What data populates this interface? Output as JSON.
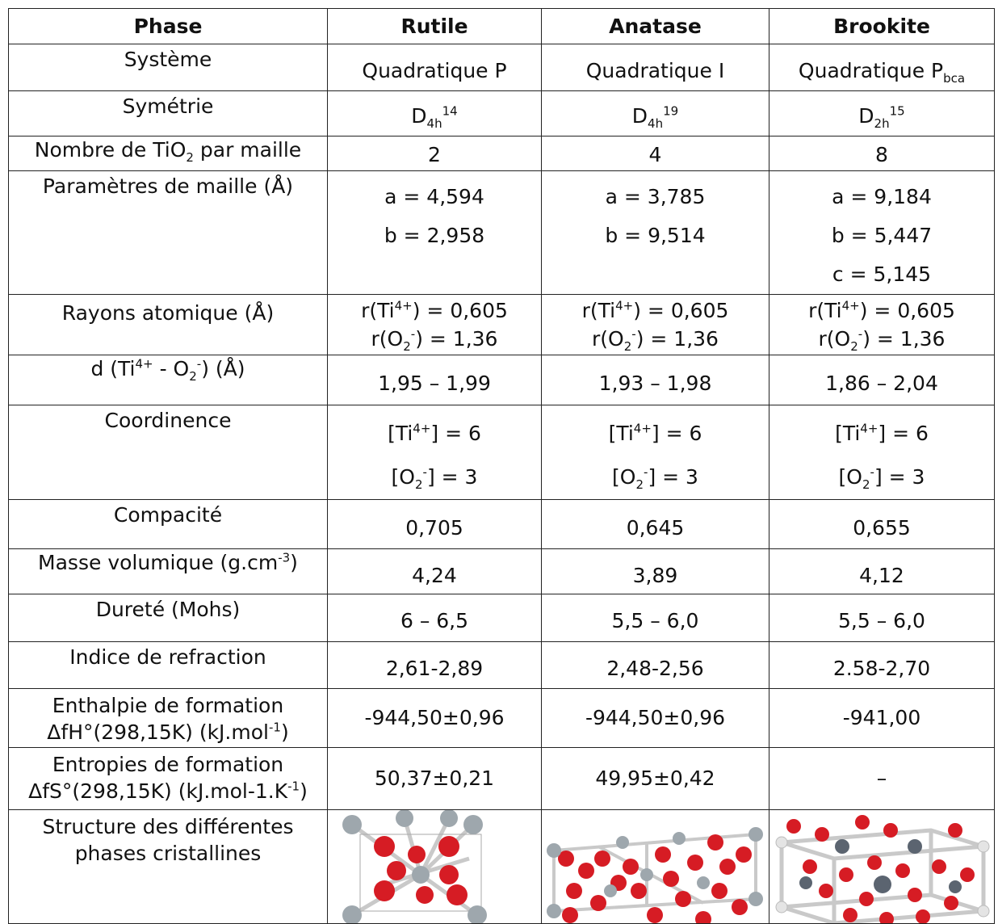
{
  "headers": [
    "Phase",
    "Rutile",
    "Anatase",
    "Brookite"
  ],
  "rows": {
    "systeme": {
      "label": "Système",
      "rutile": "Quadratique P",
      "anatase": "Quadratique I",
      "brookite": "Quadratique P",
      "brookite_sub": "bca"
    },
    "symetrie": {
      "label": "Symétrie",
      "rutile": {
        "base": "D",
        "sub": "4h",
        "sup": "14"
      },
      "anatase": {
        "base": "D",
        "sub": "4h",
        "sup": "19"
      },
      "brookite": {
        "base": "D",
        "sub": "2h",
        "sup": "15"
      }
    },
    "nombre": {
      "label_pre": "Nombre de TiO",
      "label_sub": "2",
      "label_post": " par maille",
      "rutile": "2",
      "anatase": "4",
      "brookite": "8"
    },
    "parametres": {
      "label": "Paramètres de maille (Å)",
      "rutile": [
        "a = 4,594",
        "b = 2,958"
      ],
      "anatase": [
        "a = 3,785",
        "b = 9,514"
      ],
      "brookite": [
        "a = 9,184",
        "b = 5,447",
        "c = 5,145"
      ]
    },
    "rayons": {
      "label": "Rayons atomique (Å)",
      "ti_pre": "r(Ti",
      "ti_sup": "4+",
      "ti_post": ") = 0,605",
      "o_pre": "r(O",
      "o_sub": "2",
      "o_sup": "-",
      "o_post": ") = 1,36"
    },
    "distance": {
      "label_pre": "d (Ti",
      "label_sup": "4+",
      "label_mid": " - O",
      "label_sub": "2",
      "label_sup2": "-",
      "label_post": ") (Å)",
      "rutile": "1,95 – 1,99",
      "anatase": "1,93 – 1,98",
      "brookite": "1,86 – 2,04"
    },
    "coordinence": {
      "label": "Coordinence",
      "ti_pre": "[Ti",
      "ti_sup": "4+",
      "ti_post": "] = 6",
      "o_pre": "[O",
      "o_sub": "2",
      "o_sup": "-",
      "o_post": "] = 3"
    },
    "compacite": {
      "label": "Compacité",
      "rutile": "0,705",
      "anatase": "0,645",
      "brookite": "0,655"
    },
    "masse": {
      "label_pre": "Masse volumique (g.cm",
      "label_sup": "-3",
      "label_post": ")",
      "rutile": "4,24",
      "anatase": "3,89",
      "brookite": "4,12"
    },
    "durete": {
      "label": "Dureté (Mohs)",
      "rutile": "6 – 6,5",
      "anatase": "5,5 – 6,0",
      "brookite": "5,5 – 6,0"
    },
    "indice": {
      "label": "Indice de refraction",
      "rutile": "2,61-2,89",
      "anatase": "2,48-2,56",
      "brookite": "2.58-2,70"
    },
    "enthalpie": {
      "label_1": "Enthalpie de formation",
      "label_2_pre": "ΔfH°(298,15K) (kJ.mol",
      "label_2_sup": "-1",
      "label_2_post": ")",
      "rutile": "-944,50±0,96",
      "anatase": "-944,50±0,96",
      "brookite": "-941,00"
    },
    "entropie": {
      "label_1": "Entropies de formation",
      "label_2_pre": "ΔfS°(298,15K) (kJ.mol-1.K",
      "label_2_sup": "-1",
      "label_2_post": ")",
      "rutile": "50,37±0,21",
      "anatase": "49,95±0,42",
      "brookite": "–"
    },
    "structure": {
      "label_1": "Structure des différentes",
      "label_2": "phases cristallines"
    }
  },
  "colors": {
    "oxygen": "#d61c24",
    "titanium": "#9ea7ad",
    "bond": "#c9c9c9",
    "border": "#222222"
  }
}
